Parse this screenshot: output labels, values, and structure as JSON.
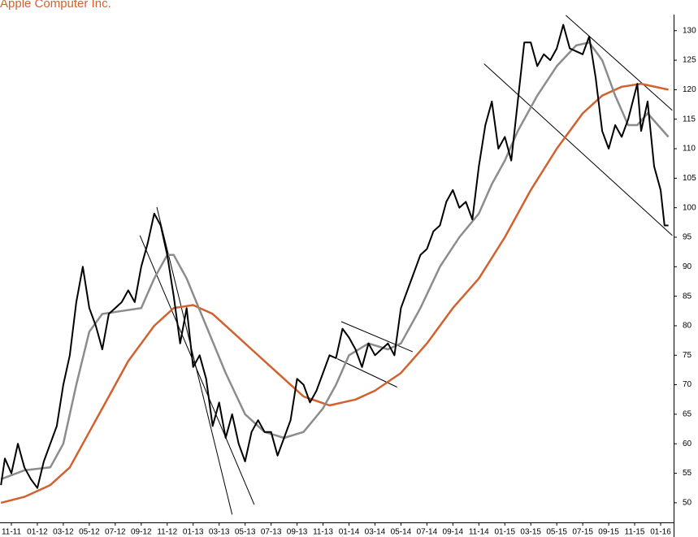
{
  "chart_data": {
    "type": "line",
    "title": "Apple Computer Inc.",
    "xlim": [
      -0.876,
      51.0
    ],
    "xticks": [
      {
        "value": 0,
        "label": "11-11"
      },
      {
        "value": 2,
        "label": "01-12"
      },
      {
        "value": 4,
        "label": "03-12"
      },
      {
        "value": 6,
        "label": "05-12"
      },
      {
        "value": 8,
        "label": "07-12"
      },
      {
        "value": 10,
        "label": "09-12"
      },
      {
        "value": 12,
        "label": "11-12"
      },
      {
        "value": 14,
        "label": "01-13"
      },
      {
        "value": 16,
        "label": "03-13"
      },
      {
        "value": 18,
        "label": "05-13"
      },
      {
        "value": 20,
        "label": "07-13"
      },
      {
        "value": 22,
        "label": "09-13"
      },
      {
        "value": 24,
        "label": "11-13"
      },
      {
        "value": 26,
        "label": "01-14"
      },
      {
        "value": 28,
        "label": "03-14"
      },
      {
        "value": 30,
        "label": "05-14"
      },
      {
        "value": 32,
        "label": "07-14"
      },
      {
        "value": 34,
        "label": "09-14"
      },
      {
        "value": 36,
        "label": "11-14"
      },
      {
        "value": 38,
        "label": "01-15"
      },
      {
        "value": 40,
        "label": "03-15"
      },
      {
        "value": 42,
        "label": "05-15"
      },
      {
        "value": 44,
        "label": "07-15"
      },
      {
        "value": 46,
        "label": "09-15"
      },
      {
        "value": 48,
        "label": "11-15"
      },
      {
        "value": 50,
        "label": "01-16"
      }
    ],
    "ylim": [
      44.2,
      135.2
    ],
    "yticks": [
      50,
      55,
      60,
      65,
      70,
      75,
      80,
      85,
      90,
      95,
      100,
      105,
      110,
      115,
      120,
      125,
      130
    ],
    "series": [
      {
        "color": "#000000",
        "width": 2,
        "x": [
          -0.8,
          -0.5,
          0,
          0.5,
          1,
          1.5,
          2,
          2.5,
          3,
          3.5,
          4,
          4.5,
          5,
          5.5,
          6,
          6.5,
          7,
          7.5,
          8,
          8.5,
          9,
          9.5,
          10,
          10.5,
          11,
          11.5,
          12,
          12.5,
          13,
          13.5,
          14,
          14.5,
          15,
          15.5,
          16,
          16.5,
          17,
          17.5,
          18,
          18.5,
          19,
          19.5,
          20,
          20.5,
          21,
          21.5,
          22,
          22.5,
          23,
          23.5,
          24,
          24.5,
          25,
          25.5,
          26,
          26.5,
          27,
          27.5,
          28,
          28.5,
          29,
          29.5,
          30,
          30.5,
          31,
          31.5,
          32,
          32.5,
          33,
          33.5,
          34,
          34.5,
          35,
          35.5,
          36,
          36.5,
          37,
          37.5,
          38,
          38.5,
          39,
          39.5,
          40,
          40.5,
          41,
          41.5,
          42,
          42.5,
          43,
          43.5,
          44,
          44.5,
          45,
          45.5,
          46,
          46.5,
          47,
          47.5,
          48.2,
          48.5,
          49,
          49.5,
          50,
          50.3,
          50.6
        ],
        "values": [
          53,
          57.5,
          55,
          60,
          56,
          54,
          52.5,
          57,
          60,
          63,
          70,
          75,
          84,
          90,
          83,
          80,
          76,
          82,
          83,
          84,
          86,
          84,
          90,
          94,
          99,
          97,
          92,
          85,
          77,
          83,
          73,
          75,
          71,
          63,
          67,
          61,
          65,
          60,
          57,
          62,
          64,
          62,
          62,
          58,
          61,
          64,
          71,
          70,
          67,
          69,
          72,
          75,
          74.5,
          79.5,
          78,
          76,
          73,
          77,
          75,
          76,
          77,
          75,
          83,
          86,
          89,
          92,
          93,
          96,
          97,
          101,
          103,
          100,
          101,
          98,
          107,
          114,
          118,
          110,
          112,
          108,
          118,
          128,
          128,
          124,
          126,
          125,
          127,
          131,
          127,
          126.5,
          126,
          129,
          122,
          113,
          110,
          114,
          112,
          115,
          121,
          113,
          118,
          107,
          103,
          97,
          97
        ]
      },
      {
        "color": "#8c8c8c",
        "width": 2.5,
        "x": [
          -0.8,
          1,
          3,
          4,
          5,
          6,
          7,
          8.5,
          10,
          11,
          12,
          12.5,
          13.5,
          15,
          16.5,
          18,
          19.5,
          21,
          22.5,
          24,
          25,
          26,
          27.5,
          29,
          30,
          31.5,
          33,
          34.5,
          36,
          37,
          38,
          39,
          40.5,
          42,
          43.5,
          44.5,
          45.5,
          46.5,
          47.5,
          48.2,
          49,
          50.6
        ],
        "values": [
          54,
          55.5,
          56,
          60,
          70,
          79,
          82,
          82.5,
          83,
          88,
          92,
          92,
          88,
          80,
          72,
          65,
          62,
          61,
          62,
          66,
          70,
          75,
          77,
          76,
          77,
          83,
          90,
          95,
          99,
          104,
          108,
          113,
          119,
          124,
          127.5,
          128,
          125,
          119,
          114,
          114,
          116,
          112
        ]
      },
      {
        "color": "#d2612e",
        "width": 2.5,
        "x": [
          -0.8,
          1,
          3,
          4.5,
          6,
          7.5,
          9,
          11,
          12.5,
          14,
          15.5,
          17,
          18.5,
          20.5,
          22.5,
          24.5,
          26.5,
          28,
          30,
          32,
          34,
          36,
          38,
          40,
          42,
          44,
          45.5,
          47,
          48.5,
          50.6
        ],
        "values": [
          50,
          51,
          53,
          56,
          62,
          68,
          74,
          80,
          83,
          83.5,
          82,
          79,
          76,
          72,
          68,
          66.5,
          67.5,
          69,
          72,
          77,
          83,
          88,
          95,
          103,
          110,
          116,
          119,
          120.5,
          121,
          120
        ]
      }
    ],
    "trendlines": [
      {
        "x": [
          11.2,
          17.0
        ],
        "y": [
          100.1,
          48
        ]
      },
      {
        "x": [
          9.9,
          18.7
        ],
        "y": [
          95.3,
          49.7
        ]
      },
      {
        "x": [
          25.4,
          30.9
        ],
        "y": [
          80.7,
          75.6
        ]
      },
      {
        "x": [
          25.1,
          29.7
        ],
        "y": [
          74.4,
          69.6
        ]
      },
      {
        "x": [
          36.4,
          50.9
        ],
        "y": [
          124.4,
          95.3
        ]
      },
      {
        "x": [
          42.7,
          50.9
        ],
        "y": [
          132.6,
          116.5
        ]
      }
    ]
  }
}
